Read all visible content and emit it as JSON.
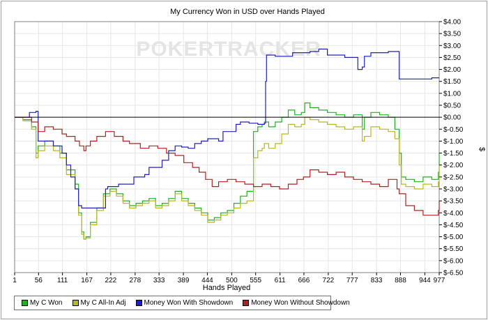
{
  "chart_data": {
    "type": "line",
    "title": "My Currency Won in USD over Hands Played",
    "xlabel": "Hands Played",
    "ylabel": "$",
    "watermark": "POKERTRACKER",
    "xlim": [
      1,
      977
    ],
    "ylim": [
      -6.5,
      4.0
    ],
    "x_ticks": [
      1,
      56,
      111,
      167,
      222,
      278,
      333,
      389,
      444,
      500,
      555,
      611,
      666,
      722,
      777,
      833,
      888,
      944,
      977
    ],
    "y_ticks": [
      4.0,
      3.5,
      3.0,
      2.5,
      2.0,
      1.5,
      1.0,
      0.5,
      0.0,
      -0.5,
      -1.0,
      -1.5,
      -2.0,
      -2.5,
      -3.0,
      -3.5,
      -4.0,
      -4.5,
      -5.0,
      -5.5,
      -6.0,
      -6.5
    ],
    "y_tick_labels": [
      "$4.00",
      "$3.50",
      "$3.00",
      "$2.50",
      "$2.00",
      "$1.50",
      "$1.00",
      "$0.50",
      "$0.00",
      "$-0.50",
      "$-1.00",
      "$-1.50",
      "$-2.00",
      "$-2.50",
      "$-3.00",
      "$-3.50",
      "$-4.00",
      "$-4.50",
      "$-5.00",
      "$-5.50",
      "$-6.00",
      "$-6.50"
    ],
    "grid": true,
    "legend_position": "bottom-left",
    "series": [
      {
        "name": "My C Won",
        "color": "#20b020",
        "x": [
          1,
          20,
          40,
          50,
          55,
          70,
          90,
          105,
          120,
          140,
          148,
          155,
          160,
          165,
          175,
          190,
          205,
          220,
          235,
          250,
          265,
          280,
          295,
          310,
          325,
          340,
          355,
          370,
          385,
          400,
          415,
          430,
          445,
          460,
          475,
          490,
          505,
          520,
          535,
          550,
          560,
          570,
          575,
          585,
          600,
          615,
          630,
          645,
          660,
          668,
          680,
          700,
          720,
          740,
          760,
          780,
          800,
          805,
          820,
          840,
          860,
          875,
          885,
          890,
          900,
          920,
          940,
          960,
          975,
          977
        ],
        "y": [
          0.0,
          -0.1,
          -0.4,
          -1.5,
          -1.2,
          -1.0,
          -1.2,
          -1.5,
          -2.2,
          -2.8,
          -4.0,
          -4.8,
          -5.1,
          -5.0,
          -4.4,
          -3.8,
          -3.2,
          -3.0,
          -3.2,
          -3.5,
          -3.7,
          -3.6,
          -3.5,
          -3.4,
          -3.7,
          -3.6,
          -3.4,
          -3.1,
          -3.4,
          -3.6,
          -3.8,
          -4.0,
          -4.3,
          -4.2,
          -4.0,
          -3.9,
          -3.6,
          -3.3,
          -3.1,
          -0.6,
          -0.4,
          -0.3,
          -0.2,
          -0.4,
          -0.2,
          0.0,
          0.3,
          0.1,
          0.2,
          0.6,
          0.4,
          0.3,
          0.2,
          0.1,
          0.0,
          0.1,
          -0.5,
          0.0,
          0.2,
          0.1,
          0.0,
          -0.5,
          -1.5,
          -2.5,
          -2.6,
          -2.7,
          -2.5,
          -2.6,
          -2.3,
          -1.5
        ]
      },
      {
        "name": "My C All-In Adj",
        "color": "#b8b820",
        "x": [
          1,
          20,
          40,
          50,
          55,
          70,
          90,
          105,
          120,
          140,
          148,
          155,
          160,
          165,
          175,
          190,
          205,
          220,
          235,
          250,
          265,
          280,
          295,
          310,
          325,
          340,
          355,
          370,
          385,
          400,
          415,
          430,
          445,
          460,
          475,
          490,
          505,
          520,
          535,
          550,
          560,
          570,
          575,
          585,
          600,
          615,
          630,
          645,
          660,
          668,
          680,
          700,
          720,
          740,
          760,
          780,
          800,
          805,
          820,
          840,
          860,
          875,
          885,
          890,
          900,
          920,
          940,
          960,
          975,
          977
        ],
        "y": [
          0.0,
          -0.15,
          -0.5,
          -1.7,
          -1.4,
          -1.2,
          -1.4,
          -1.7,
          -2.4,
          -3.0,
          -4.1,
          -4.9,
          -5.1,
          -5.05,
          -4.5,
          -3.9,
          -3.3,
          -3.1,
          -3.3,
          -3.6,
          -3.8,
          -3.7,
          -3.6,
          -3.5,
          -3.8,
          -3.7,
          -3.5,
          -3.2,
          -3.5,
          -3.7,
          -3.9,
          -4.1,
          -4.4,
          -4.3,
          -4.1,
          -4.0,
          -3.8,
          -3.6,
          -3.5,
          -1.7,
          -1.4,
          -1.3,
          -1.1,
          -1.3,
          -1.1,
          -0.7,
          -0.3,
          -0.4,
          -0.3,
          0.0,
          -0.1,
          -0.2,
          -0.3,
          -0.4,
          -0.5,
          -0.4,
          -1.0,
          -0.8,
          -0.4,
          -0.5,
          -0.6,
          -0.9,
          -2.0,
          -2.8,
          -2.9,
          -3.0,
          -2.8,
          -2.9,
          -2.7,
          -2.0
        ]
      },
      {
        "name": "Money Won With Showdown",
        "color": "#2020b8",
        "x": [
          1,
          30,
          35,
          50,
          55,
          90,
          110,
          120,
          130,
          140,
          148,
          155,
          165,
          185,
          210,
          215,
          230,
          240,
          275,
          300,
          310,
          340,
          355,
          370,
          385,
          400,
          415,
          430,
          445,
          470,
          480,
          510,
          520,
          525,
          540,
          560,
          575,
          578,
          580,
          600,
          640,
          680,
          700,
          720,
          760,
          790,
          800,
          805,
          820,
          860,
          880,
          885,
          920,
          960,
          977
        ],
        "y": [
          0.0,
          0.0,
          0.2,
          0.25,
          -1.0,
          -1.2,
          -1.5,
          -2.0,
          -2.5,
          -3.0,
          -3.7,
          -3.8,
          -3.8,
          -3.8,
          -3.0,
          -2.9,
          -2.9,
          -2.8,
          -2.5,
          -2.4,
          -2.1,
          -1.8,
          -1.4,
          -1.2,
          -1.25,
          -1.3,
          -1.1,
          -1.0,
          -0.9,
          -1.0,
          -0.6,
          -0.3,
          -0.2,
          -0.2,
          -0.25,
          -0.3,
          -0.25,
          1.5,
          2.6,
          2.55,
          2.7,
          2.75,
          2.85,
          2.6,
          2.5,
          2.0,
          2.1,
          2.55,
          2.7,
          2.75,
          2.75,
          1.6,
          1.6,
          1.65,
          1.65
        ]
      },
      {
        "name": "Money Won Without Showdown",
        "color": "#b02020",
        "x": [
          1,
          20,
          40,
          55,
          70,
          90,
          110,
          120,
          140,
          150,
          160,
          165,
          175,
          190,
          210,
          230,
          250,
          265,
          290,
          310,
          330,
          350,
          370,
          390,
          410,
          425,
          440,
          455,
          470,
          490,
          510,
          530,
          550,
          570,
          590,
          610,
          630,
          650,
          665,
          680,
          700,
          720,
          740,
          760,
          780,
          800,
          820,
          840,
          860,
          880,
          885,
          900,
          920,
          940,
          960,
          975,
          977
        ],
        "y": [
          0.0,
          0.0,
          -0.2,
          -0.6,
          -0.4,
          -0.5,
          -0.7,
          -0.8,
          -1.0,
          -1.2,
          -1.4,
          -1.2,
          -1.0,
          -0.8,
          -0.6,
          -0.8,
          -1.0,
          -1.1,
          -1.3,
          -1.2,
          -1.3,
          -1.5,
          -1.6,
          -1.9,
          -2.1,
          -2.3,
          -2.6,
          -2.9,
          -2.7,
          -2.6,
          -2.7,
          -2.8,
          -2.9,
          -2.8,
          -2.9,
          -3.0,
          -2.8,
          -2.6,
          -2.5,
          -2.2,
          -2.3,
          -2.4,
          -2.3,
          -2.5,
          -2.6,
          -2.7,
          -2.8,
          -2.9,
          -2.6,
          -3.0,
          -3.2,
          -3.7,
          -3.9,
          -4.1,
          -4.1,
          -3.9,
          -3.5
        ]
      }
    ]
  }
}
